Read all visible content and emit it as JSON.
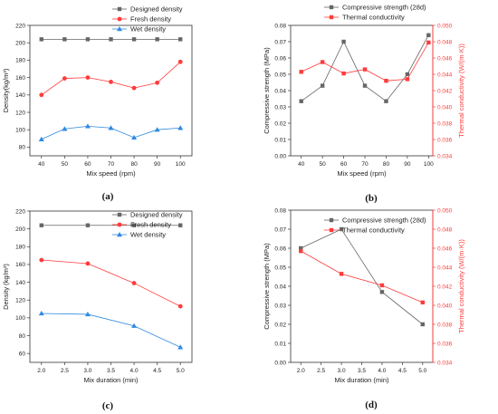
{
  "chart_data": [
    {
      "id": "a",
      "type": "line",
      "panel_label": "(a)",
      "xlabel": "Mix speed (rpm)",
      "ylabel": "Density(kg/m³)",
      "xlim": [
        35,
        105
      ],
      "ylim": [
        70,
        220
      ],
      "xticks": [
        40,
        50,
        60,
        70,
        80,
        90,
        100
      ],
      "yticks": [
        80,
        100,
        120,
        140,
        160,
        180,
        200,
        220
      ],
      "legend_position": "top-right",
      "x": [
        40,
        50,
        60,
        70,
        80,
        90,
        100
      ],
      "series": [
        {
          "name": "Designed density",
          "color": "#666666",
          "marker": "square",
          "axis": "left",
          "values": [
            204,
            204,
            204,
            204,
            204,
            204,
            204
          ]
        },
        {
          "name": "Fresh density",
          "color": "#ff3b3b",
          "marker": "circle",
          "axis": "left",
          "values": [
            140,
            159,
            160,
            155,
            148,
            154,
            178
          ]
        },
        {
          "name": "Wet density",
          "color": "#2f8ae0",
          "marker": "triangle",
          "axis": "left",
          "values": [
            89,
            101,
            104,
            102,
            91,
            100,
            102
          ]
        }
      ]
    },
    {
      "id": "b",
      "type": "line",
      "panel_label": "(b)",
      "xlabel": "Mix speed (rpm)",
      "ylabel": "Compressive strength (MPa)",
      "y2label": "Thermal conductivity (W/(m·K))",
      "xlim": [
        35,
        102
      ],
      "ylim": [
        0,
        0.08
      ],
      "y2lim": [
        0.034,
        0.05
      ],
      "xticks": [
        40,
        50,
        60,
        70,
        80,
        90,
        100
      ],
      "yticks": [
        0.0,
        0.01,
        0.02,
        0.03,
        0.04,
        0.05,
        0.06,
        0.07,
        0.08
      ],
      "y2ticks": [
        0.034,
        0.036,
        0.038,
        0.04,
        0.042,
        0.044,
        0.046,
        0.048,
        0.05
      ],
      "legend_position": "top-outside",
      "x": [
        40,
        50,
        60,
        70,
        80,
        90,
        100
      ],
      "series": [
        {
          "name": "Compressive strength (28d)",
          "color": "#666666",
          "marker": "square",
          "axis": "left",
          "values": [
            0.0335,
            0.043,
            0.07,
            0.043,
            0.0335,
            0.05,
            0.074
          ]
        },
        {
          "name": "Thermal conductivity",
          "color": "#ff3b3b",
          "marker": "square",
          "axis": "right",
          "values": [
            0.0443,
            0.0455,
            0.0441,
            0.0446,
            0.0432,
            0.0434,
            0.0479
          ]
        }
      ]
    },
    {
      "id": "c",
      "type": "line",
      "panel_label": "(c)",
      "xlabel": "Mix duration (min)",
      "ylabel": "Density (kg/m³)",
      "xlim": [
        1.75,
        5.25
      ],
      "ylim": [
        50,
        220
      ],
      "xticks": [
        2.0,
        2.5,
        3.0,
        3.5,
        4.0,
        4.5,
        5.0
      ],
      "xtick_labels": [
        "2.0",
        "2.5",
        "3.0",
        "3.5",
        "4.0",
        "4.5",
        "5.0"
      ],
      "yticks": [
        60,
        80,
        100,
        120,
        140,
        160,
        180,
        200,
        220
      ],
      "legend_position": "top-right",
      "x": [
        2,
        3,
        4,
        5
      ],
      "series": [
        {
          "name": "Designed density",
          "color": "#666666",
          "marker": "square",
          "axis": "left",
          "values": [
            204,
            204,
            204,
            204
          ]
        },
        {
          "name": "Fresh density",
          "color": "#ff3b3b",
          "marker": "circle",
          "axis": "left",
          "values": [
            165,
            161,
            139,
            113
          ]
        },
        {
          "name": "Wet density",
          "color": "#2f8ae0",
          "marker": "triangle",
          "axis": "left",
          "values": [
            105,
            104,
            91,
            67
          ]
        }
      ]
    },
    {
      "id": "d",
      "type": "line",
      "panel_label": "(d)",
      "xlabel": "Mix duration (min)",
      "ylabel": "Compressive strength (MPa)",
      "y2label": "Thermal conductivity (W/(m·K))",
      "xlim": [
        1.75,
        5.25
      ],
      "ylim": [
        0,
        0.08
      ],
      "y2lim": [
        0.034,
        0.05
      ],
      "xticks": [
        2.0,
        2.5,
        3.0,
        3.5,
        4.0,
        4.5,
        5.0
      ],
      "xtick_labels": [
        "2.0",
        "2.5",
        "3.0",
        "3.5",
        "4.0",
        "4.5",
        "5.0"
      ],
      "yticks": [
        0.0,
        0.01,
        0.02,
        0.03,
        0.04,
        0.05,
        0.06,
        0.07,
        0.08
      ],
      "y2ticks": [
        0.034,
        0.036,
        0.038,
        0.04,
        0.042,
        0.044,
        0.046,
        0.048,
        0.05
      ],
      "legend_position": "top-outside",
      "x": [
        2,
        3,
        4,
        5
      ],
      "series": [
        {
          "name": "Compressive strength (28d)",
          "color": "#666666",
          "marker": "square",
          "axis": "left",
          "values": [
            0.06,
            0.07,
            0.037,
            0.02
          ]
        },
        {
          "name": "Thermal conductivity",
          "color": "#ff3b3b",
          "marker": "square",
          "axis": "right",
          "values": [
            0.0457,
            0.0433,
            0.0421,
            0.0403
          ]
        }
      ]
    }
  ]
}
